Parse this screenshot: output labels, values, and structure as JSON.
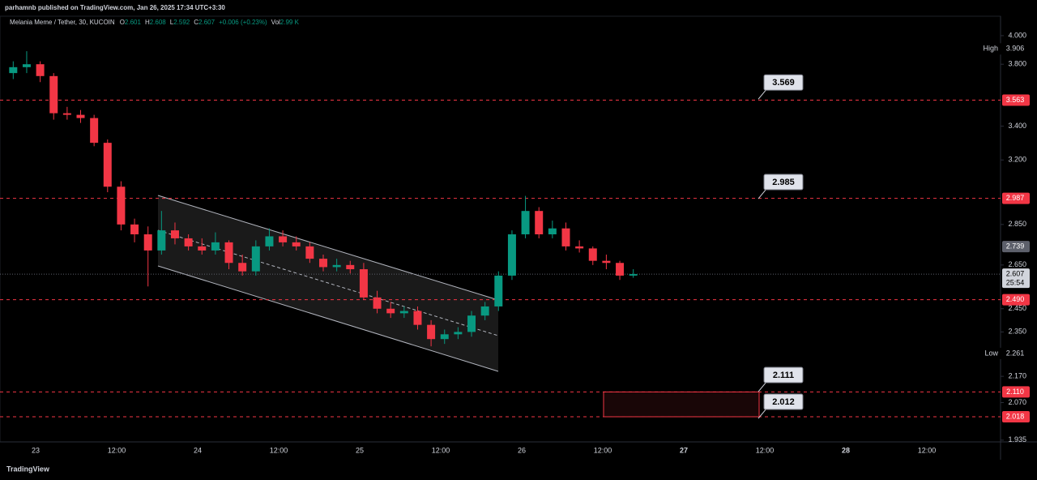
{
  "chart_data": {
    "type": "candlestick",
    "published": "parhamnb published on TradingView.com, Jan 26, 2025 17:34 UTC+3:30",
    "title": "Melania Meme / Tether, 30, KUCOIN",
    "ohlc_legend": [
      {
        "key": "O",
        "value": "2.601"
      },
      {
        "key": "H",
        "value": "2.608"
      },
      {
        "key": "L",
        "value": "2.592"
      },
      {
        "key": "C",
        "value": "2.607"
      },
      {
        "key": "",
        "value": "+0.006 (+0.23%)"
      },
      {
        "key": "Vol",
        "value": "2.99 K"
      }
    ],
    "brand": "TradingView",
    "log_scale": true,
    "up_color": "#089981",
    "down_color": "#f23645",
    "ylim": [
      1.929,
      4.142
    ],
    "yticks": [
      {
        "value": 4.0,
        "label": "4.000"
      },
      {
        "value": 3.8,
        "label": "3.800"
      },
      {
        "value": 3.4,
        "label": "3.400"
      },
      {
        "value": 3.2,
        "label": "3.200"
      },
      {
        "value": 2.85,
        "label": "2.850"
      },
      {
        "value": 2.65,
        "label": "2.650"
      },
      {
        "value": 2.45,
        "label": "2.450"
      },
      {
        "value": 2.35,
        "label": "2.350"
      },
      {
        "value": 2.17,
        "label": "2.170"
      },
      {
        "value": 2.07,
        "label": "2.070"
      },
      {
        "value": 1.935,
        "label": "1.935"
      }
    ],
    "time_labels": [
      "23",
      "12:00",
      "24",
      "12:00",
      "25",
      "12:00",
      "26",
      "12:00",
      "27",
      "12:00",
      "28",
      "12:00"
    ],
    "open": [
      3.74,
      3.78,
      3.8,
      3.72,
      3.48,
      3.47,
      3.45,
      3.3,
      3.05,
      2.85,
      2.8,
      2.72,
      2.82,
      2.78,
      2.74,
      2.72,
      2.76,
      2.66,
      2.62,
      2.74,
      2.79,
      2.76,
      2.74,
      2.68,
      2.64,
      2.65,
      2.63,
      2.5,
      2.45,
      2.43,
      2.44,
      2.38,
      2.32,
      2.34,
      2.35,
      2.42,
      2.46,
      2.6,
      2.8,
      2.92,
      2.8,
      2.83,
      2.74,
      2.73,
      2.67,
      2.66,
      2.6
    ],
    "high": [
      3.82,
      3.89,
      3.82,
      3.74,
      3.52,
      3.5,
      3.47,
      3.32,
      3.08,
      2.88,
      2.84,
      2.92,
      2.86,
      2.8,
      2.78,
      2.81,
      2.77,
      2.7,
      2.77,
      2.83,
      2.82,
      2.79,
      2.76,
      2.7,
      2.68,
      2.67,
      2.66,
      2.53,
      2.48,
      2.46,
      2.46,
      2.4,
      2.36,
      2.37,
      2.44,
      2.48,
      2.62,
      2.82,
      3.0,
      2.94,
      2.87,
      2.86,
      2.77,
      2.74,
      2.7,
      2.67,
      2.63
    ],
    "low": [
      3.7,
      3.74,
      3.68,
      3.44,
      3.44,
      3.42,
      3.28,
      3.02,
      2.82,
      2.76,
      2.55,
      2.7,
      2.75,
      2.72,
      2.7,
      2.7,
      2.63,
      2.6,
      2.6,
      2.72,
      2.74,
      2.72,
      2.66,
      2.62,
      2.62,
      2.61,
      2.49,
      2.43,
      2.41,
      2.41,
      2.36,
      2.29,
      2.3,
      2.32,
      2.33,
      2.4,
      2.44,
      2.58,
      2.78,
      2.78,
      2.78,
      2.72,
      2.71,
      2.65,
      2.63,
      2.58,
      2.59
    ],
    "close": [
      3.78,
      3.8,
      3.72,
      3.48,
      3.47,
      3.45,
      3.3,
      3.05,
      2.85,
      2.8,
      2.72,
      2.82,
      2.78,
      2.74,
      2.72,
      2.76,
      2.66,
      2.62,
      2.74,
      2.79,
      2.76,
      2.74,
      2.68,
      2.64,
      2.65,
      2.63,
      2.5,
      2.45,
      2.43,
      2.44,
      2.38,
      2.32,
      2.34,
      2.35,
      2.42,
      2.46,
      2.6,
      2.8,
      2.92,
      2.8,
      2.83,
      2.74,
      2.73,
      2.67,
      2.66,
      2.6,
      2.607
    ],
    "price_levels": [
      {
        "value": 3.563,
        "label": "3.563"
      },
      {
        "value": 2.987,
        "label": "2.987"
      },
      {
        "value": 2.49,
        "label": "2.490"
      },
      {
        "value": 2.11,
        "label": "2.110"
      },
      {
        "value": 2.018,
        "label": "2.018"
      }
    ],
    "level_color": "#f23645",
    "callouts": [
      {
        "value": 3.569,
        "label": "3.569"
      },
      {
        "value": 2.985,
        "label": "2.985"
      },
      {
        "value": 2.111,
        "label": "2.111"
      },
      {
        "value": 2.012,
        "label": "2.012"
      }
    ],
    "zone": {
      "top": 2.11,
      "bottom": 2.018
    },
    "marker": {
      "value": 2.739,
      "label": "2.739"
    },
    "last_price": {
      "value": 2.607,
      "label": "2.607",
      "countdown": "25:54"
    },
    "high_mark": {
      "text": "High",
      "value": 3.906,
      "label": "3.906"
    },
    "low_mark": {
      "text": "Low",
      "value": 2.261,
      "label": "2.261"
    }
  }
}
